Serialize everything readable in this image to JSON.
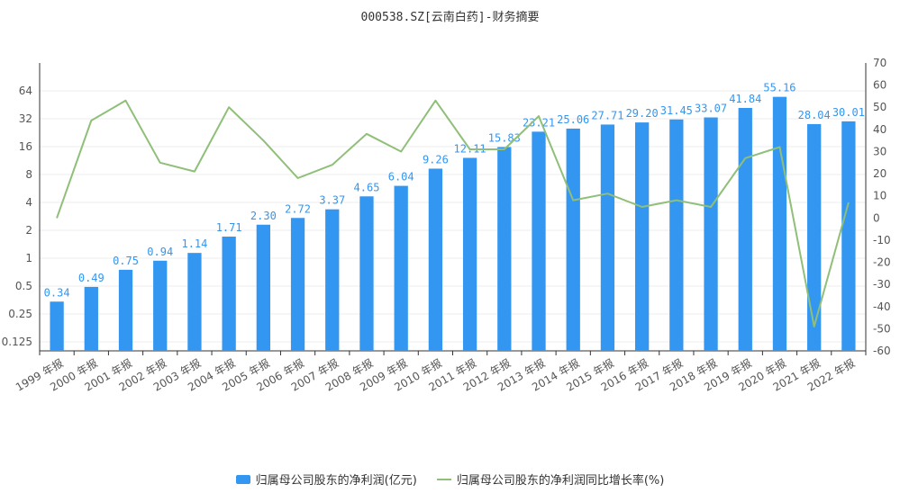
{
  "chart_data": {
    "type": "bar+line",
    "title": "000538.SZ[云南白药]-财务摘要",
    "categories": [
      "1999 年报",
      "2000 年报",
      "2001 年报",
      "2002 年报",
      "2003 年报",
      "2004 年报",
      "2005 年报",
      "2006 年报",
      "2007 年报",
      "2008 年报",
      "2009 年报",
      "2010 年报",
      "2011 年报",
      "2012 年报",
      "2013 年报",
      "2014 年报",
      "2015 年报",
      "2016 年报",
      "2017 年报",
      "2018 年报",
      "2019 年报",
      "2020 年报",
      "2021 年报",
      "2022 年报"
    ],
    "series": [
      {
        "name": "归属母公司股东的净利润(亿元)",
        "type": "bar",
        "axis": "left",
        "color": "#3396f0",
        "values": [
          0.34,
          0.49,
          0.75,
          0.94,
          1.14,
          1.71,
          2.3,
          2.72,
          3.37,
          4.65,
          6.04,
          9.26,
          12.11,
          15.83,
          23.21,
          25.06,
          27.71,
          29.2,
          31.45,
          33.07,
          41.84,
          55.16,
          28.04,
          30.01
        ],
        "labels": [
          "0.34",
          "0.49",
          "0.75",
          "0.94",
          "1.14",
          "1.71",
          "2.30",
          "2.72",
          "3.37",
          "4.65",
          "6.04",
          "9.26",
          "12.11",
          "15.83",
          "23.21",
          "25.06",
          "27.71",
          "29.20",
          "31.45",
          "33.07",
          "41.84",
          "55.16",
          "28.04",
          "30.01"
        ]
      },
      {
        "name": "归属母公司股东的净利润同比增长率(%)",
        "type": "line",
        "axis": "right",
        "color": "#8fbf78",
        "values": [
          0,
          44,
          53,
          25,
          21,
          50,
          35,
          18,
          24,
          38,
          30,
          53,
          31,
          31,
          46,
          8,
          11,
          5,
          8,
          5,
          27,
          32,
          -49,
          7
        ]
      }
    ],
    "left_axis": {
      "scale": "log2",
      "ticks": [
        0.125,
        0.25,
        0.5,
        1,
        2,
        4,
        8,
        16,
        32,
        64
      ],
      "tick_labels": [
        "0.125",
        "0.25",
        "0.5",
        "1",
        "2",
        "4",
        "8",
        "16",
        "32",
        "64"
      ],
      "ylim": [
        0.1,
        128
      ]
    },
    "right_axis": {
      "scale": "linear",
      "ticks": [
        -60,
        -50,
        -40,
        -30,
        -20,
        -10,
        0,
        10,
        20,
        30,
        40,
        50,
        60,
        70
      ],
      "tick_labels": [
        "-60",
        "-50",
        "-40",
        "-30",
        "-20",
        "-10",
        "0",
        "10",
        "20",
        "30",
        "40",
        "50",
        "60",
        "70"
      ],
      "ylim": [
        -60,
        70
      ]
    },
    "legend": {
      "position": "bottom-center",
      "items": [
        "归属母公司股东的净利润(亿元)",
        "归属母公司股东的净利润同比增长率(%)"
      ]
    },
    "grid": true
  }
}
